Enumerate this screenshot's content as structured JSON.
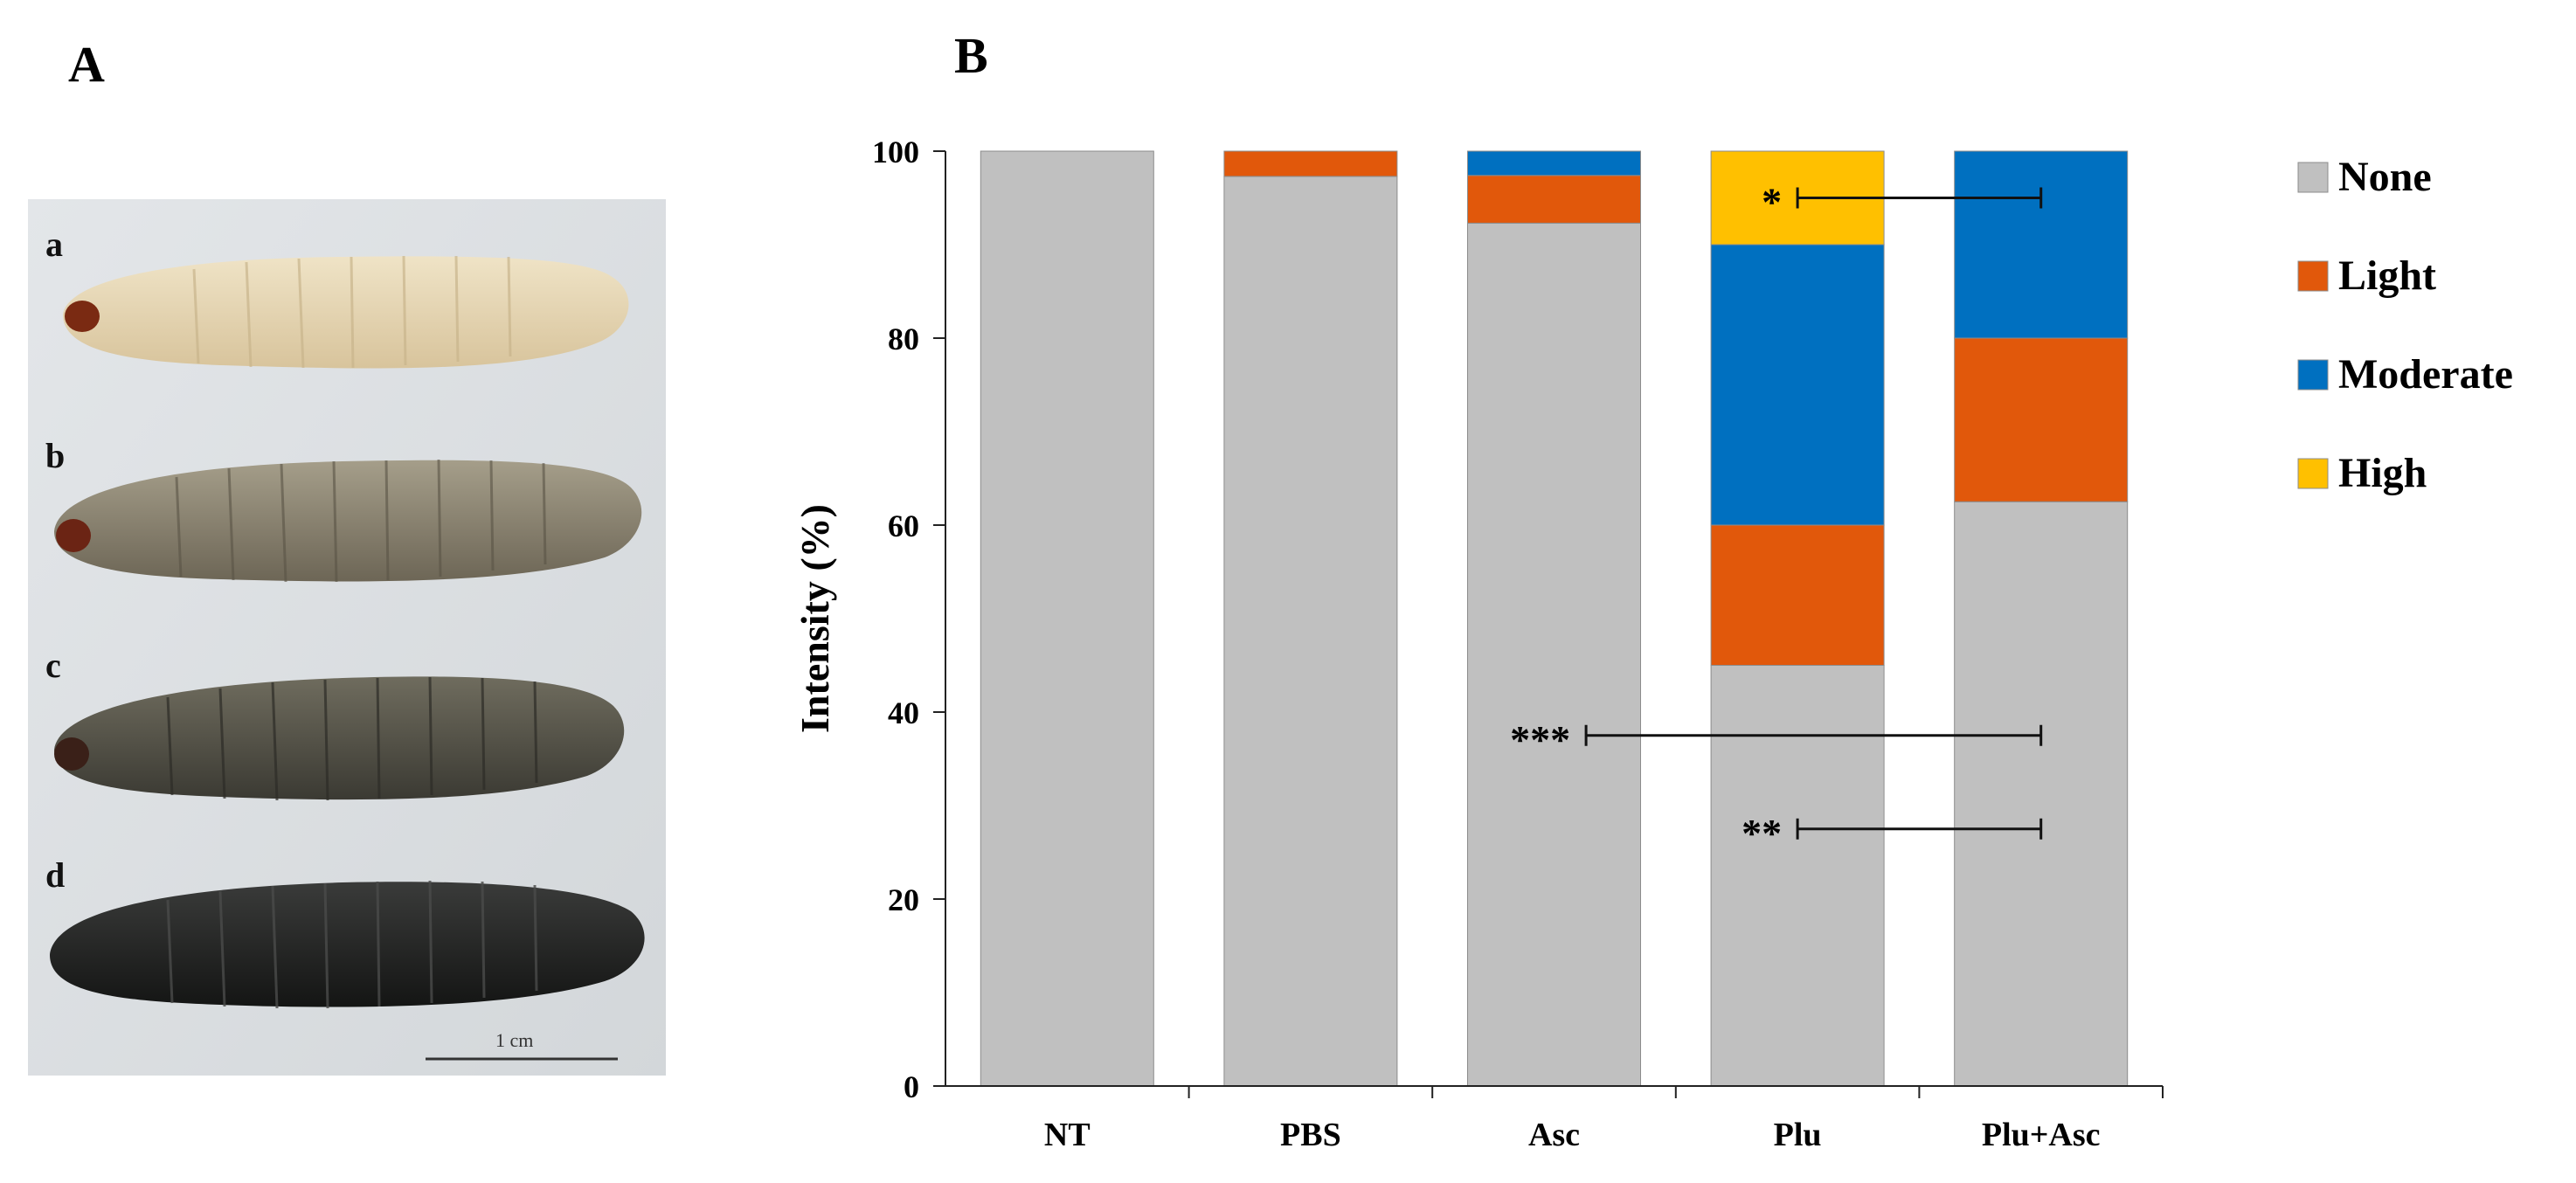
{
  "panels": {
    "a_label": "A",
    "b_label": "B"
  },
  "photo": {
    "larva_labels": [
      "a",
      "b",
      "c",
      "d"
    ],
    "scale_bar_label": "1 cm"
  },
  "colors": {
    "None": "#c0c0c0",
    "Light": "#e1580b",
    "Moderate": "#0070c0",
    "High": "#ffc000"
  },
  "chart_data": {
    "type": "bar",
    "stacked": true,
    "categories": [
      "NT",
      "PBS",
      "Asc",
      "Plu",
      "Plu+Asc"
    ],
    "series": [
      {
        "name": "None",
        "values": [
          100,
          97.3,
          92.3,
          45,
          62.5
        ]
      },
      {
        "name": "Light",
        "values": [
          0,
          2.7,
          5.1,
          15,
          17.5
        ]
      },
      {
        "name": "Moderate",
        "values": [
          0,
          0,
          2.6,
          30,
          20
        ]
      },
      {
        "name": "High",
        "values": [
          0,
          0,
          0,
          10,
          0
        ]
      }
    ],
    "ylabel": "Intensity (%)",
    "xlabel": "",
    "ylim": [
      0,
      100
    ],
    "yticks": [
      "0",
      "20",
      "40",
      "60",
      "80",
      "100"
    ],
    "grid": false,
    "legend_position": "right",
    "annotations": [
      {
        "text": "*",
        "from": "Plu",
        "to": "Plu+Asc",
        "y": 95
      },
      {
        "text": "***",
        "from": "Plu",
        "to": "Plu+Asc",
        "y": 37.5
      },
      {
        "text": "**",
        "from": "Plu",
        "to": "Plu+Asc",
        "y": 27.5
      }
    ]
  }
}
